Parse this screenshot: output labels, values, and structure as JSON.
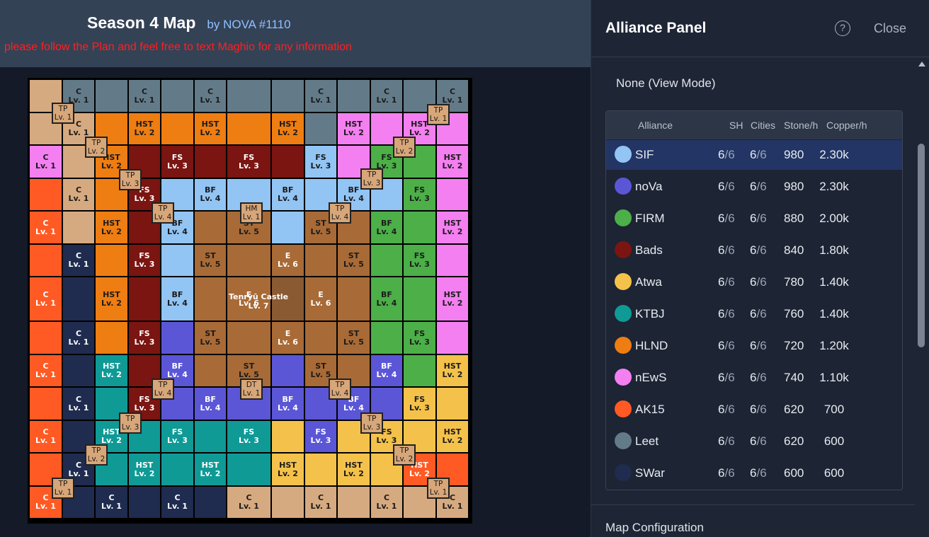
{
  "header": {
    "title": "Season 4 Map",
    "author": "by NOVA #1110",
    "notice": "please follow the Plan and feel free to text Maghio for any information"
  },
  "colors": {
    "SIF": "#92c4f4",
    "noVa": "#5b56d6",
    "FIRM": "#4caf48",
    "Bads": "#7a1512",
    "Atwa": "#f4c24a",
    "KTBJ": "#0f9a96",
    "HLND": "#ee7d12",
    "nEwS": "#f47ff0",
    "AK15": "#ff5a24",
    "Leet": "#637b89",
    "SWar": "#1f2c4f",
    "plain": "#d6aa80",
    "ring": "#a86a36",
    "castle": "#8a5a33",
    "marker": "#d7a679"
  },
  "map": {
    "castle_name": "Tenryū Castle",
    "castle_level": "Lv. 7",
    "cells": [
      [
        "plain",
        "",
        ""
      ],
      [
        "Leet",
        "C",
        "Lv. 1"
      ],
      [
        "Leet",
        "",
        ""
      ],
      [
        "Leet",
        "C",
        "Lv. 1"
      ],
      [
        "Leet",
        "",
        ""
      ],
      [
        "Leet",
        "C",
        "Lv. 1"
      ],
      [
        "Leet",
        "",
        ""
      ],
      [
        "Leet",
        "",
        ""
      ],
      [
        "Leet",
        "C",
        "Lv. 1"
      ],
      [
        "Leet",
        "",
        ""
      ],
      [
        "Leet",
        "C",
        "Lv. 1"
      ],
      [
        "Leet",
        "",
        ""
      ],
      [
        "Leet",
        "C",
        "Lv. 1"
      ],
      [
        "plain",
        "",
        ""
      ],
      [
        "plain",
        "C",
        "Lv. 1"
      ],
      [
        "HLND",
        "",
        ""
      ],
      [
        "HLND",
        "HST",
        "Lv. 2"
      ],
      [
        "HLND",
        "",
        ""
      ],
      [
        "HLND",
        "HST",
        "Lv. 2"
      ],
      [
        "HLND",
        "",
        ""
      ],
      [
        "HLND",
        "HST",
        "Lv. 2"
      ],
      [
        "Leet",
        "",
        ""
      ],
      [
        "nEwS",
        "HST",
        "Lv. 2"
      ],
      [
        "nEwS",
        "",
        ""
      ],
      [
        "nEwS",
        "HST",
        "Lv. 2"
      ],
      [
        "nEwS",
        "",
        ""
      ],
      [
        "nEwS",
        "C",
        "Lv. 1"
      ],
      [
        "plain",
        "",
        ""
      ],
      [
        "HLND",
        "HST",
        "Lv. 2"
      ],
      [
        "Bads",
        "",
        ""
      ],
      [
        "Bads",
        "FS",
        "Lv. 3"
      ],
      [
        "Bads",
        "",
        ""
      ],
      [
        "Bads",
        "FS",
        "Lv. 3"
      ],
      [
        "Bads",
        "",
        ""
      ],
      [
        "SIF",
        "FS",
        "Lv. 3"
      ],
      [
        "nEwS",
        "",
        ""
      ],
      [
        "FIRM",
        "FS",
        "Lv. 3"
      ],
      [
        "FIRM",
        "",
        ""
      ],
      [
        "nEwS",
        "HST",
        "Lv. 2"
      ],
      [
        "AK15",
        "",
        ""
      ],
      [
        "plain",
        "C",
        "Lv. 1"
      ],
      [
        "HLND",
        "",
        ""
      ],
      [
        "Bads",
        "FS",
        "Lv. 3"
      ],
      [
        "SIF",
        "",
        ""
      ],
      [
        "SIF",
        "BF",
        "Lv. 4"
      ],
      [
        "SIF",
        "",
        ""
      ],
      [
        "SIF",
        "BF",
        "Lv. 4"
      ],
      [
        "SIF",
        "",
        ""
      ],
      [
        "SIF",
        "BF",
        "Lv. 4"
      ],
      [
        "SIF",
        "",
        ""
      ],
      [
        "FIRM",
        "FS",
        "Lv. 3"
      ],
      [
        "nEwS",
        "",
        ""
      ],
      [
        "AK15",
        "C",
        "Lv. 1"
      ],
      [
        "plain",
        "",
        ""
      ],
      [
        "HLND",
        "HST",
        "Lv. 2"
      ],
      [
        "Bads",
        "",
        ""
      ],
      [
        "SIF",
        "BF",
        "Lv. 4"
      ],
      [
        "ring",
        "",
        ""
      ],
      [
        "ring",
        "ST",
        "Lv. 5"
      ],
      [
        "SIF",
        "",
        ""
      ],
      [
        "ring",
        "ST",
        "Lv. 5"
      ],
      [
        "ring",
        "",
        ""
      ],
      [
        "FIRM",
        "BF",
        "Lv. 4"
      ],
      [
        "FIRM",
        "",
        ""
      ],
      [
        "nEwS",
        "HST",
        "Lv. 2"
      ],
      [
        "AK15",
        "",
        ""
      ],
      [
        "SWar",
        "C",
        "Lv. 1"
      ],
      [
        "HLND",
        "",
        ""
      ],
      [
        "Bads",
        "FS",
        "Lv. 3"
      ],
      [
        "SIF",
        "",
        ""
      ],
      [
        "ring",
        "ST",
        "Lv. 5"
      ],
      [
        "ring",
        "",
        ""
      ],
      [
        "ring",
        "E",
        "Lv. 6"
      ],
      [
        "ring",
        "",
        ""
      ],
      [
        "ring",
        "ST",
        "Lv. 5"
      ],
      [
        "FIRM",
        "",
        ""
      ],
      [
        "FIRM",
        "FS",
        "Lv. 3"
      ],
      [
        "nEwS",
        "",
        ""
      ],
      [
        "AK15",
        "C",
        "Lv. 1"
      ],
      [
        "SWar",
        "",
        ""
      ],
      [
        "HLND",
        "HST",
        "Lv. 2"
      ],
      [
        "Bads",
        "",
        ""
      ],
      [
        "SIF",
        "BF",
        "Lv. 4"
      ],
      [
        "ring",
        "",
        ""
      ],
      [
        "ring",
        "E",
        "Lv. 6"
      ],
      [
        "castle",
        "",
        ""
      ],
      [
        "ring",
        "E",
        "Lv. 6"
      ],
      [
        "ring",
        "",
        ""
      ],
      [
        "FIRM",
        "BF",
        "Lv. 4"
      ],
      [
        "FIRM",
        "",
        ""
      ],
      [
        "nEwS",
        "HST",
        "Lv. 2"
      ],
      [
        "AK15",
        "",
        ""
      ],
      [
        "SWar",
        "C",
        "Lv. 1"
      ],
      [
        "HLND",
        "",
        ""
      ],
      [
        "Bads",
        "FS",
        "Lv. 3"
      ],
      [
        "noVa",
        "",
        ""
      ],
      [
        "ring",
        "ST",
        "Lv. 5"
      ],
      [
        "ring",
        "",
        ""
      ],
      [
        "ring",
        "E",
        "Lv. 6"
      ],
      [
        "ring",
        "",
        ""
      ],
      [
        "ring",
        "ST",
        "Lv. 5"
      ],
      [
        "FIRM",
        "",
        ""
      ],
      [
        "FIRM",
        "FS",
        "Lv. 3"
      ],
      [
        "nEwS",
        "",
        ""
      ],
      [
        "AK15",
        "C",
        "Lv. 1"
      ],
      [
        "SWar",
        "",
        ""
      ],
      [
        "KTBJ",
        "HST",
        "Lv. 2"
      ],
      [
        "Bads",
        "",
        ""
      ],
      [
        "noVa",
        "BF",
        "Lv. 4"
      ],
      [
        "ring",
        "",
        ""
      ],
      [
        "ring",
        "ST",
        "Lv. 5"
      ],
      [
        "noVa",
        "",
        ""
      ],
      [
        "ring",
        "ST",
        "Lv. 5"
      ],
      [
        "ring",
        "",
        ""
      ],
      [
        "noVa",
        "BF",
        "Lv. 4"
      ],
      [
        "FIRM",
        "",
        ""
      ],
      [
        "Atwa",
        "HST",
        "Lv. 2"
      ],
      [
        "AK15",
        "",
        ""
      ],
      [
        "SWar",
        "C",
        "Lv. 1"
      ],
      [
        "KTBJ",
        "",
        ""
      ],
      [
        "Bads",
        "FS",
        "Lv. 3"
      ],
      [
        "noVa",
        "",
        ""
      ],
      [
        "noVa",
        "BF",
        "Lv. 4"
      ],
      [
        "noVa",
        "",
        ""
      ],
      [
        "noVa",
        "BF",
        "Lv. 4"
      ],
      [
        "noVa",
        "",
        ""
      ],
      [
        "noVa",
        "BF",
        "Lv. 4"
      ],
      [
        "noVa",
        "",
        ""
      ],
      [
        "Atwa",
        "FS",
        "Lv. 3"
      ],
      [
        "Atwa",
        "",
        ""
      ],
      [
        "AK15",
        "C",
        "Lv. 1"
      ],
      [
        "SWar",
        "",
        ""
      ],
      [
        "KTBJ",
        "HST",
        "Lv. 2"
      ],
      [
        "KTBJ",
        "",
        ""
      ],
      [
        "KTBJ",
        "FS",
        "Lv. 3"
      ],
      [
        "KTBJ",
        "",
        ""
      ],
      [
        "KTBJ",
        "FS",
        "Lv. 3"
      ],
      [
        "Atwa",
        "",
        ""
      ],
      [
        "noVa",
        "FS",
        "Lv. 3"
      ],
      [
        "Atwa",
        "",
        ""
      ],
      [
        "Atwa",
        "FS",
        "Lv. 3"
      ],
      [
        "Atwa",
        "",
        ""
      ],
      [
        "Atwa",
        "HST",
        "Lv. 2"
      ],
      [
        "AK15",
        "",
        ""
      ],
      [
        "SWar",
        "C",
        "Lv. 1"
      ],
      [
        "KTBJ",
        "",
        ""
      ],
      [
        "KTBJ",
        "HST",
        "Lv. 2"
      ],
      [
        "KTBJ",
        "",
        ""
      ],
      [
        "KTBJ",
        "HST",
        "Lv. 2"
      ],
      [
        "KTBJ",
        "",
        ""
      ],
      [
        "Atwa",
        "HST",
        "Lv. 2"
      ],
      [
        "Atwa",
        "",
        ""
      ],
      [
        "Atwa",
        "HST",
        "Lv. 2"
      ],
      [
        "Atwa",
        "",
        ""
      ],
      [
        "AK15",
        "HST",
        "Lv. 2"
      ],
      [
        "AK15",
        "",
        ""
      ],
      [
        "AK15",
        "C",
        "Lv. 1"
      ],
      [
        "SWar",
        "",
        ""
      ],
      [
        "SWar",
        "C",
        "Lv. 1"
      ],
      [
        "SWar",
        "",
        ""
      ],
      [
        "SWar",
        "C",
        "Lv. 1"
      ],
      [
        "SWar",
        "",
        ""
      ],
      [
        "plain",
        "C",
        "Lv. 1"
      ],
      [
        "plain",
        "",
        ""
      ],
      [
        "plain",
        "C",
        "Lv. 1"
      ],
      [
        "plain",
        "",
        ""
      ],
      [
        "plain",
        "C",
        "Lv. 1"
      ],
      [
        "plain",
        "",
        ""
      ],
      [
        "plain",
        "C",
        "Lv. 1"
      ],
      [
        "plain",
        "",
        ""
      ]
    ],
    "markers": [
      [
        "TP",
        "Lv. 1"
      ],
      [
        "TP",
        "Lv. 1"
      ],
      [
        "TP",
        "Lv. 2"
      ],
      [
        "TP",
        "Lv. 2"
      ],
      [
        "TP",
        "Lv. 3"
      ],
      [
        "TP",
        "Lv. 3"
      ],
      [
        "TP",
        "Lv. 4"
      ],
      [
        "HM",
        "Lv. 1"
      ],
      [
        "TP",
        "Lv. 4"
      ],
      [
        "TP",
        "Lv. 4"
      ],
      [
        "DT",
        "Lv. 1"
      ],
      [
        "TP",
        "Lv. 4"
      ],
      [
        "TP",
        "Lv. 3"
      ],
      [
        "TP",
        "Lv. 3"
      ],
      [
        "TP",
        "Lv. 2"
      ],
      [
        "TP",
        "Lv. 2"
      ],
      [
        "TP",
        "Lv. 1"
      ],
      [
        "TP",
        "Lv. 1"
      ]
    ]
  },
  "panel": {
    "title": "Alliance Panel",
    "help": "?",
    "close": "Close",
    "view_mode": "None (View Mode)",
    "columns": {
      "alliance": "Alliance",
      "sh": "SH",
      "cities": "Cities",
      "stone": "Stone/h",
      "copper": "Copper/h"
    },
    "alliances": [
      {
        "name": "SIF",
        "sh": "6",
        "sh_max": "/6",
        "cities": "6",
        "cities_max": "/6",
        "stone": "980",
        "copper": "2.30k",
        "color": "#92c4f4",
        "selected": true
      },
      {
        "name": "noVa",
        "sh": "6",
        "sh_max": "/6",
        "cities": "6",
        "cities_max": "/6",
        "stone": "980",
        "copper": "2.30k",
        "color": "#5b56d6"
      },
      {
        "name": "FIRM",
        "sh": "6",
        "sh_max": "/6",
        "cities": "6",
        "cities_max": "/6",
        "stone": "880",
        "copper": "2.00k",
        "color": "#4caf48"
      },
      {
        "name": "Bads",
        "sh": "6",
        "sh_max": "/6",
        "cities": "6",
        "cities_max": "/6",
        "stone": "840",
        "copper": "1.80k",
        "color": "#7a1512"
      },
      {
        "name": "Atwa",
        "sh": "6",
        "sh_max": "/6",
        "cities": "6",
        "cities_max": "/6",
        "stone": "780",
        "copper": "1.40k",
        "color": "#f4c24a"
      },
      {
        "name": "KTBJ",
        "sh": "6",
        "sh_max": "/6",
        "cities": "6",
        "cities_max": "/6",
        "stone": "760",
        "copper": "1.40k",
        "color": "#0f9a96"
      },
      {
        "name": "HLND",
        "sh": "6",
        "sh_max": "/6",
        "cities": "6",
        "cities_max": "/6",
        "stone": "720",
        "copper": "1.20k",
        "color": "#ee7d12"
      },
      {
        "name": "nEwS",
        "sh": "6",
        "sh_max": "/6",
        "cities": "6",
        "cities_max": "/6",
        "stone": "740",
        "copper": "1.10k",
        "color": "#f47ff0"
      },
      {
        "name": "AK15",
        "sh": "6",
        "sh_max": "/6",
        "cities": "6",
        "cities_max": "/6",
        "stone": "620",
        "copper": "700",
        "color": "#ff5a24"
      },
      {
        "name": "Leet",
        "sh": "6",
        "sh_max": "/6",
        "cities": "6",
        "cities_max": "/6",
        "stone": "620",
        "copper": "600",
        "color": "#637b89"
      },
      {
        "name": "SWar",
        "sh": "6",
        "sh_max": "/6",
        "cities": "6",
        "cities_max": "/6",
        "stone": "600",
        "copper": "600",
        "color": "#1f2c4f"
      }
    ],
    "map_config": "Map Configuration"
  }
}
